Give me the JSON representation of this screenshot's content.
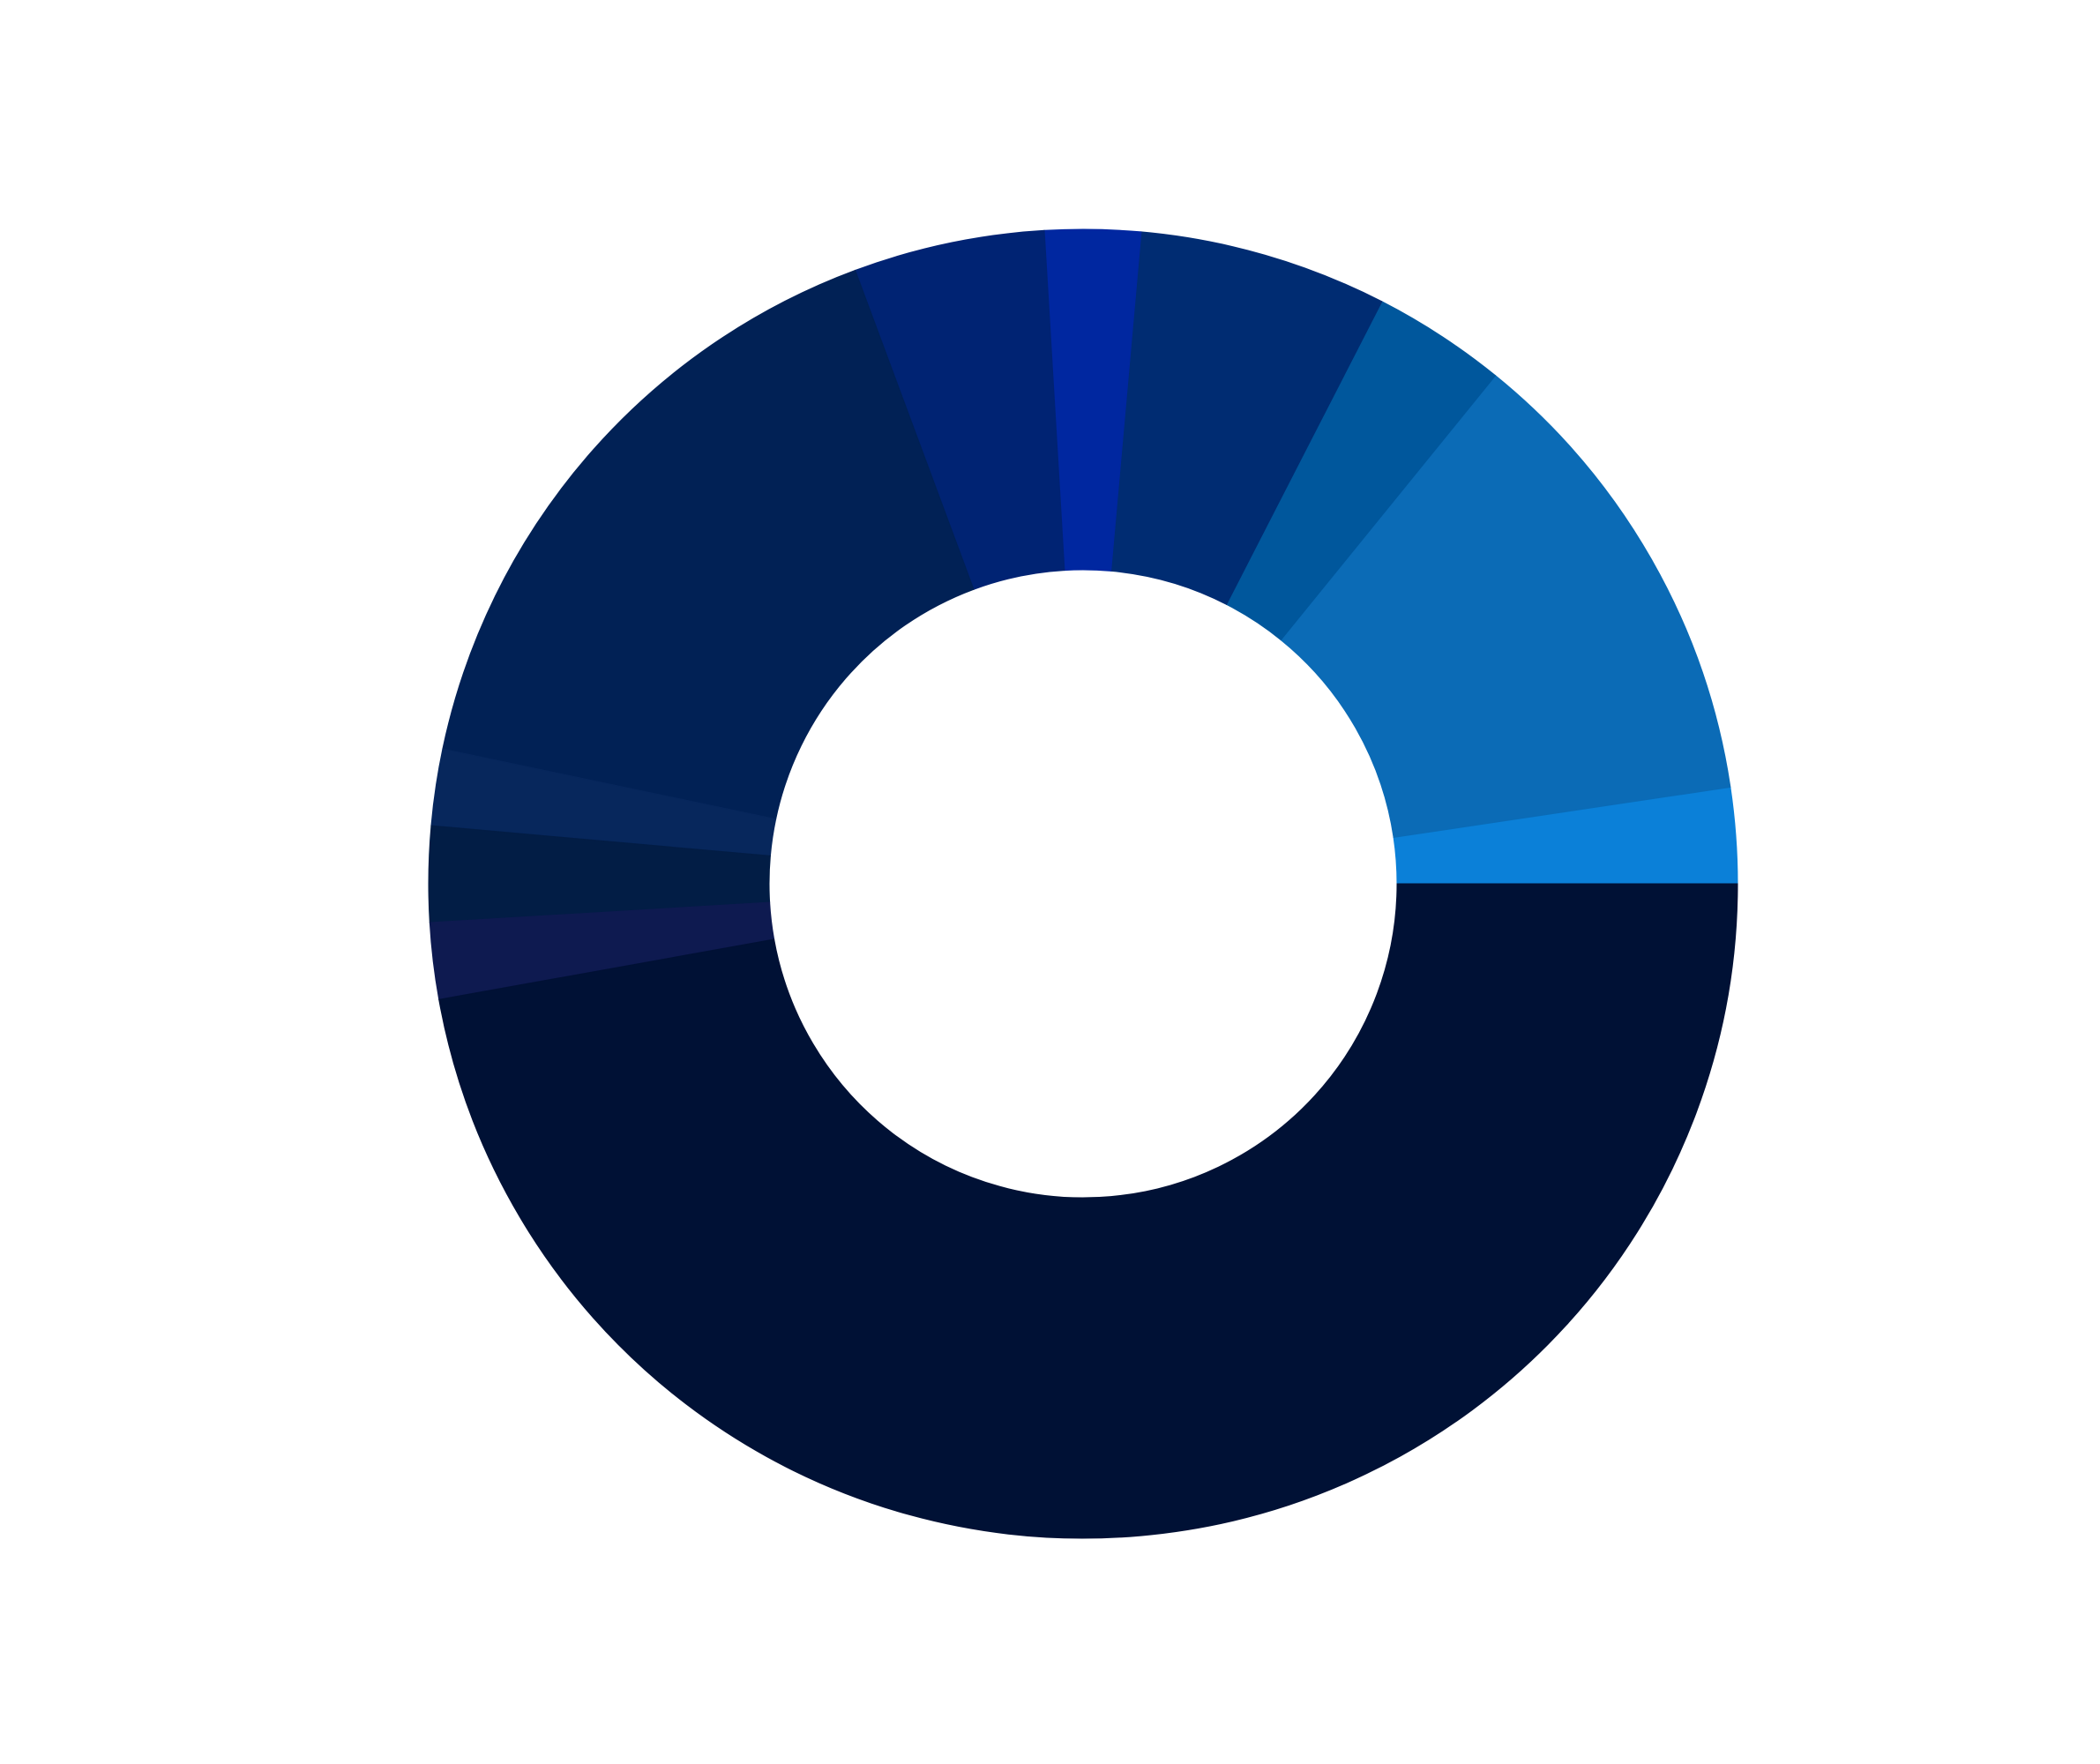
{
  "chart_data": {
    "type": "pie",
    "donut": true,
    "title": "",
    "legend": "none",
    "start": "right",
    "direction": "counterclockwise",
    "slices": [
      {
        "value": 2.5,
        "color": "#0b80d8"
      },
      {
        "value": 12.5,
        "color": "#0b6bb6"
      },
      {
        "value": 3.5,
        "color": "#00579c"
      },
      {
        "value": 6.5,
        "color": "#002c72"
      },
      {
        "value": 2.5,
        "color": "#0027a0"
      },
      {
        "value": 5.0,
        "color": "#002373"
      },
      {
        "value": 17.0,
        "color": "#012155"
      },
      {
        "value": 2.0,
        "color": "#07275c"
      },
      {
        "value": 2.5,
        "color": "#021d45"
      },
      {
        "value": 2.0,
        "color": "#0e1a50"
      },
      {
        "value": 50.0,
        "color": "#001135"
      }
    ]
  }
}
